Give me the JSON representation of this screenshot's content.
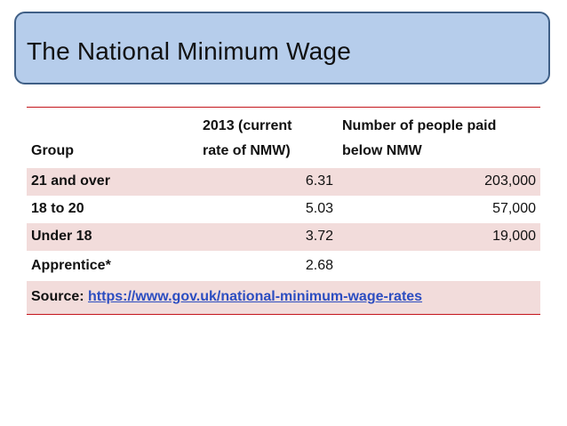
{
  "slide": {
    "title": "The National Minimum Wage"
  },
  "table": {
    "headers": {
      "group": "Group",
      "rate_line1": "2013 (current",
      "rate_line2": "rate of NMW)",
      "count_line1": "Number of people paid",
      "count_line2": "below NMW"
    },
    "rows": [
      {
        "group": "21 and over",
        "rate": "6.31",
        "count": "203,000"
      },
      {
        "group": "18 to 20",
        "rate": "5.03",
        "count": "57,000"
      },
      {
        "group": "Under 18",
        "rate": "3.72",
        "count": "19,000"
      },
      {
        "group": "Apprentice*",
        "rate": "2.68",
        "count": ""
      }
    ],
    "source_label": "Source:",
    "source_url": "https://www.gov.uk/national-minimum-wage-rates"
  },
  "colors": {
    "title_fill": "#b6cdeb",
    "title_border": "#3f5f86",
    "row_highlight": "#f2dcdb",
    "rule": "#c4161c",
    "link": "#2d4ec1"
  }
}
